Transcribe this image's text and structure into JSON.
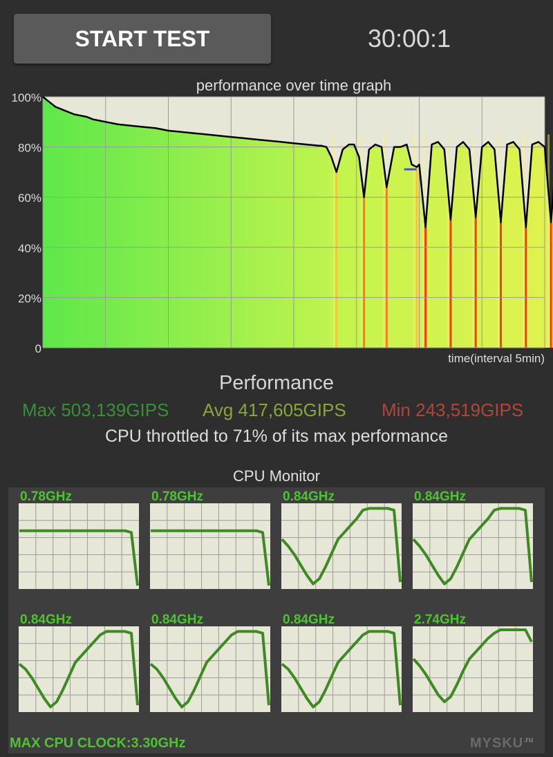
{
  "header": {
    "start_button_label": "START TEST",
    "timer": "30:00:1"
  },
  "colors": {
    "background": "#2e2e2e",
    "button": "#5a5a5a",
    "plot_bg": "#e7e7d8",
    "grid": "#9a9a9a",
    "perf_line": "#000000",
    "throttle_stripe": "#ff3a0a",
    "max_green": "#3a8f3a",
    "avg_olive": "#8aa63a",
    "min_red": "#b0463a",
    "cpu_line": "#3e8a22",
    "cpu_label": "#4fc234"
  },
  "chart_data": {
    "type": "area",
    "title": "performance over time graph",
    "xlabel": "time(interval 5min)",
    "ylabel": "",
    "ylim": [
      0,
      100
    ],
    "y_ticks": [
      "100%",
      "80%",
      "60%",
      "40%",
      "20%",
      "0"
    ],
    "x_intervals": 8,
    "grid": true,
    "series": [
      {
        "x_min": [
          0,
          0.5,
          1,
          1.5,
          2,
          2.5,
          3,
          3.5,
          4,
          4.5,
          5,
          6,
          7,
          8,
          9,
          10,
          11,
          12,
          13,
          14,
          15,
          16,
          17,
          18,
          19,
          20,
          21,
          22,
          22.2,
          22.6,
          23,
          23.4,
          23.9,
          24.4,
          24.8,
          25.2,
          25.6,
          26,
          26.5,
          27,
          27.4,
          28,
          28.5,
          29,
          29.4,
          29.8,
          30,
          30.5,
          31,
          31.5,
          32,
          32.5,
          33,
          33.5,
          34,
          34.5,
          35,
          35.5,
          36,
          36.5,
          37,
          37.5,
          38,
          38.5,
          39,
          39.5,
          40,
          40.5,
          41,
          41.5,
          42,
          42.5,
          43,
          43.5,
          44,
          44.5,
          45,
          45.5,
          46,
          46.5,
          47,
          47.5,
          48
        ],
        "values": [
          100,
          98,
          96,
          95,
          94,
          93,
          92.5,
          92,
          91,
          90.5,
          90,
          89,
          88.5,
          88,
          87.5,
          86.5,
          86,
          85.5,
          85,
          84.5,
          84,
          83.5,
          83,
          82.5,
          82,
          81.5,
          81,
          80.5,
          80.5,
          80,
          76,
          70,
          79,
          81,
          81,
          76,
          60,
          79,
          81,
          80,
          64,
          80,
          80,
          81,
          73,
          72,
          73,
          48,
          81,
          82,
          79,
          51,
          80,
          82,
          79,
          52,
          80,
          82,
          79,
          50,
          81,
          82,
          79,
          48,
          81,
          82,
          80,
          50,
          81,
          82,
          79,
          48,
          81,
          82,
          80,
          49,
          80,
          81,
          79,
          47,
          81,
          82,
          80
        ]
      }
    ]
  },
  "performance": {
    "title": "Performance",
    "max": "Max 503,139GIPS",
    "avg": "Avg 417,605GIPS",
    "min": "Min 243,519GIPS",
    "throttle": "CPU throttled to 71% of its max performance"
  },
  "cpu_monitor": {
    "title": "CPU Monitor",
    "cores": [
      {
        "freq": "0.78GHz",
        "values": [
          68,
          68,
          68,
          68,
          68,
          68,
          68,
          68,
          68,
          68,
          68,
          68,
          68,
          68,
          68,
          68,
          68,
          68,
          66,
          4
        ]
      },
      {
        "freq": "0.78GHz",
        "values": [
          68,
          68,
          68,
          68,
          68,
          68,
          68,
          68,
          68,
          68,
          68,
          68,
          68,
          68,
          68,
          68,
          68,
          68,
          66,
          4
        ]
      },
      {
        "freq": "0.84GHz",
        "values": [
          58,
          50,
          40,
          28,
          16,
          6,
          12,
          26,
          42,
          58,
          66,
          74,
          82,
          92,
          94,
          94,
          94,
          94,
          92,
          8
        ]
      },
      {
        "freq": "0.84GHz",
        "values": [
          58,
          50,
          40,
          28,
          16,
          6,
          12,
          26,
          42,
          58,
          66,
          74,
          82,
          92,
          94,
          94,
          94,
          94,
          92,
          8
        ]
      },
      {
        "freq": "0.84GHz",
        "values": [
          56,
          50,
          40,
          28,
          16,
          6,
          12,
          26,
          42,
          58,
          66,
          74,
          82,
          90,
          94,
          94,
          94,
          94,
          92,
          8
        ]
      },
      {
        "freq": "0.84GHz",
        "values": [
          56,
          50,
          40,
          28,
          16,
          6,
          12,
          26,
          42,
          58,
          66,
          74,
          82,
          90,
          94,
          94,
          94,
          94,
          92,
          8
        ]
      },
      {
        "freq": "0.84GHz",
        "values": [
          56,
          50,
          40,
          28,
          16,
          6,
          12,
          26,
          42,
          58,
          66,
          74,
          82,
          90,
          94,
          94,
          94,
          94,
          92,
          8
        ]
      },
      {
        "freq": "2.74GHz",
        "values": [
          62,
          54,
          44,
          32,
          20,
          12,
          18,
          32,
          48,
          62,
          70,
          78,
          86,
          92,
          96,
          96,
          96,
          96,
          96,
          82
        ]
      }
    ],
    "max_clock": "MAX CPU CLOCK:3.30GHz"
  },
  "watermark": {
    "main": "MYSKU",
    "suffix": ".ru"
  }
}
